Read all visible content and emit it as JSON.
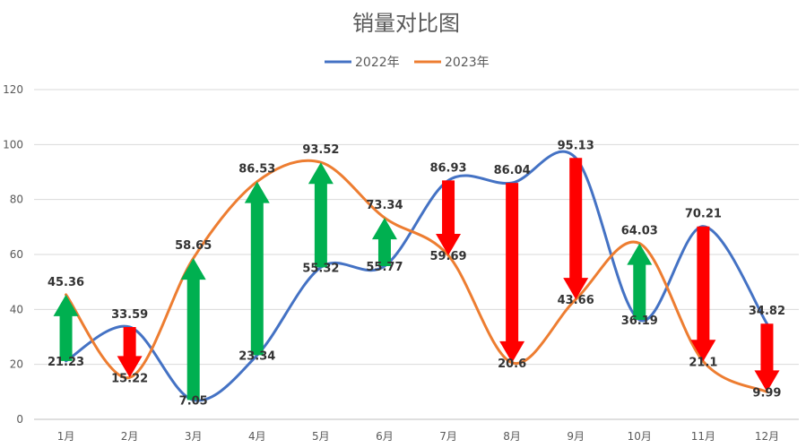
{
  "chart_data": {
    "type": "line",
    "title": "销量对比图",
    "categories": [
      "1月",
      "2月",
      "3月",
      "4月",
      "5月",
      "6月",
      "7月",
      "8月",
      "9月",
      "10月",
      "11月",
      "12月"
    ],
    "series": [
      {
        "name": "2022年",
        "color": "#4472C4",
        "values": [
          21.23,
          33.59,
          7.05,
          23.34,
          55.32,
          55.77,
          86.93,
          86.04,
          95.13,
          36.19,
          70.21,
          34.82
        ]
      },
      {
        "name": "2023年",
        "color": "#ED7D31",
        "values": [
          45.36,
          15.22,
          58.65,
          86.53,
          93.52,
          73.34,
          59.69,
          20.6,
          43.66,
          64.03,
          21.1,
          9.99
        ]
      }
    ],
    "arrows": {
      "up_color": "#00B050",
      "down_color": "#FF0000"
    },
    "ylim": [
      0,
      120
    ],
    "yticks": [
      0,
      20,
      40,
      60,
      80,
      100,
      120
    ],
    "grid": true,
    "legend": "top-center",
    "xlabel": "",
    "ylabel": ""
  }
}
